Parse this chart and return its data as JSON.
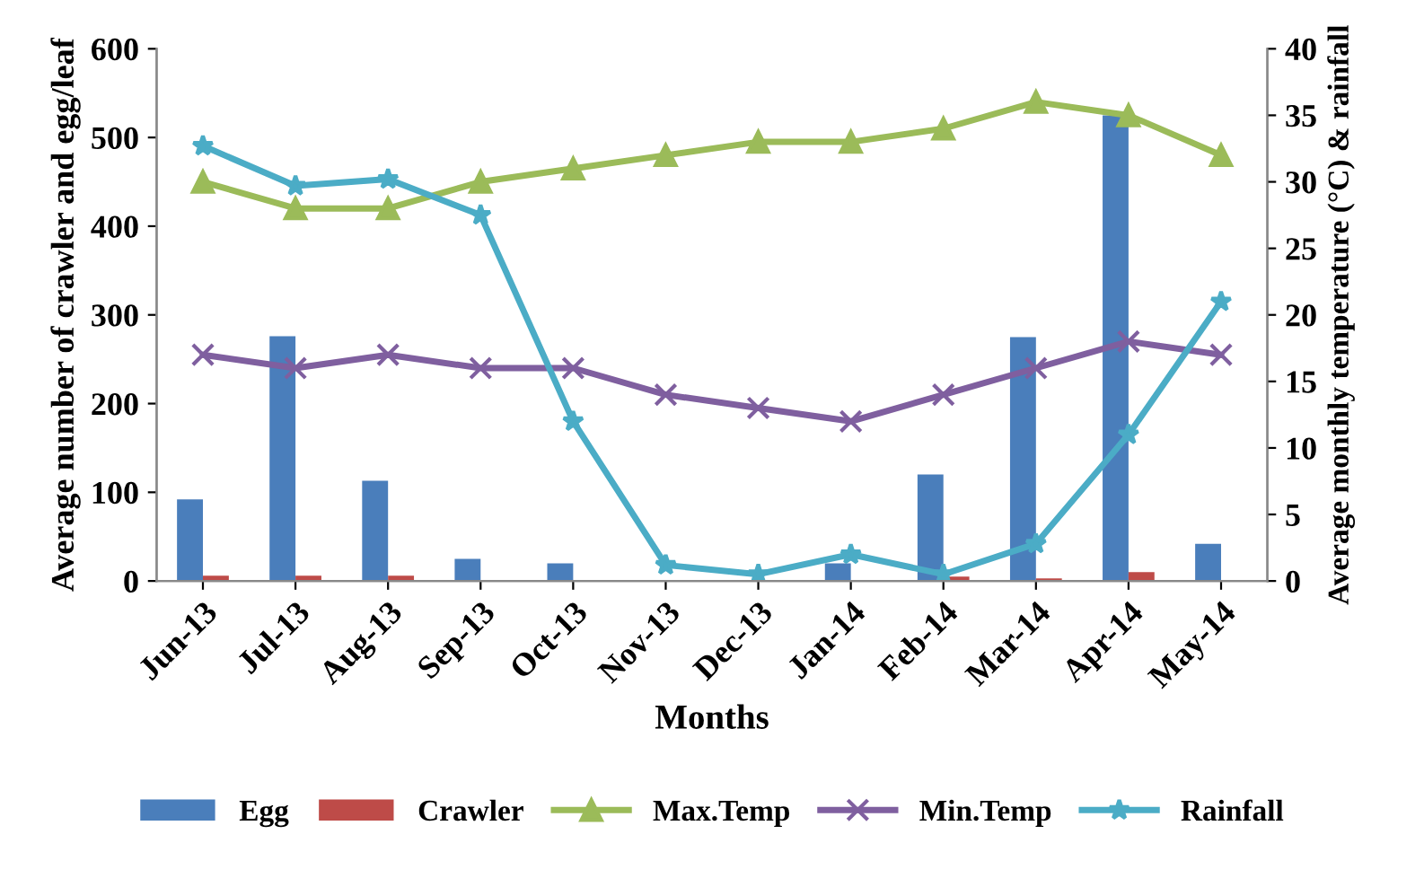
{
  "chart_data": {
    "type": "bar",
    "xlabel": "Months",
    "ylabel": "Average number of crawler and egg/leaf",
    "y2label": "Average monthly temperature (°C) & rainfall",
    "categories": [
      "Jun-13",
      "Jul-13",
      "Aug-13",
      "Sep-13",
      "Oct-13",
      "Nov-13",
      "Dec-13",
      "Jan-14",
      "Feb-14",
      "Mar-14",
      "Apr-14",
      "May-14"
    ],
    "series": [
      {
        "name": "Egg",
        "color": "#4a7ebb",
        "values": [
          92,
          276,
          113,
          25,
          20,
          0,
          0,
          20,
          120,
          275,
          525,
          42
        ]
      },
      {
        "name": "Crawler",
        "color": "#be4b48",
        "values": [
          6,
          6,
          6,
          0,
          0,
          0,
          0,
          0,
          5,
          3,
          10,
          0
        ]
      },
      {
        "name": "Max.Temp",
        "type": "line",
        "axis": "y2",
        "marker": "triangle",
        "color": "#9bbb59",
        "values": [
          30,
          28,
          28,
          30,
          31,
          32,
          33,
          33,
          34,
          36,
          35,
          32
        ]
      },
      {
        "name": "Min.Temp",
        "type": "line",
        "axis": "y2",
        "marker": "cross",
        "color": "#7f5f9f",
        "values": [
          17,
          16,
          17,
          16,
          16,
          14,
          13,
          12,
          14,
          16,
          18,
          17
        ]
      },
      {
        "name": "Rainfall",
        "type": "line",
        "axis": "y2",
        "marker": "star",
        "color": "#4bacc6",
        "values": [
          32.7,
          29.7,
          30.2,
          27.5,
          12,
          1.2,
          0.5,
          2,
          0.5,
          2.8,
          11,
          21
        ]
      }
    ],
    "ylim": [
      0,
      600
    ],
    "yticks": [
      0,
      100,
      200,
      300,
      400,
      500,
      600
    ],
    "y2lim": [
      0,
      40
    ],
    "y2ticks": [
      0,
      5,
      10,
      15,
      20,
      25,
      30,
      35,
      40
    ],
    "legend": "bottom",
    "grid": false
  }
}
